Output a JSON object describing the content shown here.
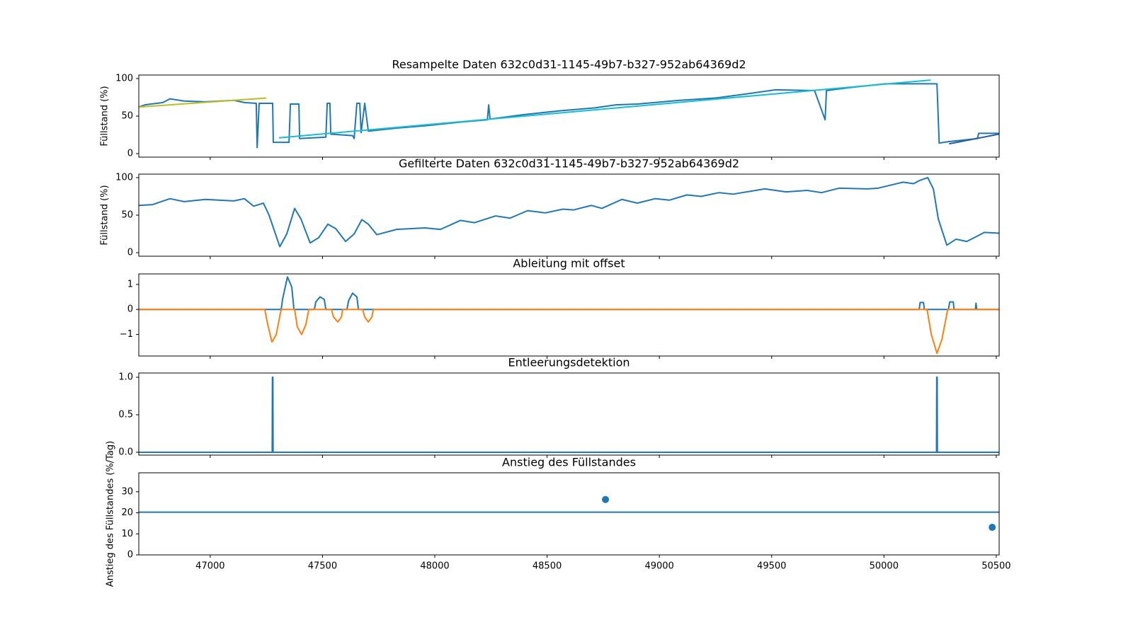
{
  "chart_data": [
    {
      "type": "line",
      "title": "Resampelte Daten 632c0d31-1145-49b7-b327-952ab64369d2",
      "ylabel": "Füllstand (%)",
      "xlim": [
        46682,
        50513
      ],
      "ylim": [
        -4.7,
        104.7
      ],
      "yticks": [
        0,
        50,
        100
      ],
      "series": [
        {
          "color": "#1f77b4",
          "x": [
            46682,
            46710,
            46789,
            46821,
            46884,
            46978,
            47105,
            47152,
            47205,
            47209,
            47218,
            47278,
            47281,
            47351,
            47357,
            47395,
            47398,
            47515,
            47521,
            47533,
            47537,
            47634,
            47641,
            47653,
            47666,
            47672,
            47688,
            47704,
            47830,
            47956,
            48114,
            48234,
            48240,
            48246,
            48398,
            48555,
            48713,
            48807,
            48902,
            49091,
            49249,
            49375,
            49517,
            49691,
            49738,
            49744,
            49848,
            50006,
            50236,
            50246,
            50290,
            50416,
            50422,
            50513
          ],
          "values": [
            62,
            65,
            68,
            73,
            70,
            69,
            71,
            68,
            67,
            8,
            67,
            67,
            15,
            15,
            66,
            66,
            20,
            22,
            67,
            67,
            26,
            24,
            20,
            67,
            67,
            28,
            67,
            30,
            34,
            37,
            42,
            45,
            65,
            46,
            52,
            57,
            61,
            65,
            66,
            71,
            74,
            79,
            85,
            84,
            45,
            84,
            88,
            93,
            93,
            14,
            16,
            20,
            27,
            27
          ]
        },
        {
          "color": "#bcbd22",
          "x": [
            46682,
            47250
          ],
          "values": [
            62,
            74
          ]
        },
        {
          "color": "#17becf",
          "x": [
            47306,
            50208
          ],
          "values": [
            21,
            98
          ]
        },
        {
          "color": "#2a5d9f",
          "x": [
            50290,
            50513
          ],
          "values": [
            13,
            26
          ]
        }
      ]
    },
    {
      "type": "line",
      "title": "Gefilterte Daten 632c0d31-1145-49b7-b327-952ab64369d2",
      "ylabel": "Füllstand (%)",
      "xlim": [
        46682,
        50513
      ],
      "ylim": [
        -4.7,
        104.7
      ],
      "yticks": [
        0,
        50,
        100
      ],
      "series": [
        {
          "color": "#1f77b4",
          "x": [
            46682,
            46742,
            46821,
            46884,
            46978,
            47105,
            47152,
            47193,
            47237,
            47262,
            47310,
            47341,
            47376,
            47404,
            47445,
            47483,
            47524,
            47559,
            47603,
            47641,
            47675,
            47704,
            47742,
            47830,
            47956,
            48025,
            48114,
            48177,
            48271,
            48335,
            48413,
            48492,
            48571,
            48618,
            48697,
            48744,
            48833,
            48902,
            48981,
            49044,
            49123,
            49186,
            49265,
            49328,
            49470,
            49564,
            49659,
            49722,
            49801,
            49927,
            49974,
            50085,
            50132,
            50157,
            50195,
            50220,
            50242,
            50280,
            50321,
            50369,
            50447,
            50513
          ],
          "values": [
            63,
            64,
            72,
            68,
            71,
            69,
            72,
            62,
            66,
            50,
            8,
            25,
            59,
            45,
            13,
            20,
            38,
            32,
            15,
            25,
            44,
            38,
            24,
            31,
            33,
            31,
            43,
            40,
            49,
            46,
            56,
            53,
            58,
            57,
            63,
            59,
            71,
            66,
            72,
            70,
            77,
            75,
            80,
            78,
            85,
            81,
            83,
            80,
            86,
            85,
            86,
            94,
            92,
            96,
            100,
            85,
            45,
            10,
            18,
            15,
            27,
            26
          ]
        }
      ]
    },
    {
      "type": "line",
      "title": "Ableitung mit offset",
      "xlim": [
        46682,
        50513
      ],
      "ylim": [
        -1.86,
        1.42
      ],
      "yticks": [
        {
          "value": -1,
          "label": "−1"
        },
        0,
        1
      ],
      "series": [
        {
          "color": "#1f77b4",
          "x": [
            46682,
            47316,
            47322,
            47344,
            47363,
            47373,
            47464,
            47470,
            47489,
            47508,
            47515,
            47609,
            47616,
            47634,
            47653,
            47660,
            50157,
            50161,
            50176,
            50180,
            50287,
            50293,
            50309,
            50312,
            50407,
            50410,
            50413,
            50513
          ],
          "values": [
            0,
            0,
            0.4,
            1.3,
            0.9,
            0,
            0,
            0.3,
            0.5,
            0.4,
            0,
            0,
            0.35,
            0.65,
            0.5,
            0,
            0,
            0.28,
            0.28,
            0,
            0,
            0.3,
            0.3,
            0,
            0,
            0.25,
            0,
            0
          ]
        },
        {
          "color": "#ff7f0e",
          "x": [
            46682,
            47243,
            47256,
            47275,
            47294,
            47316,
            47376,
            47388,
            47407,
            47426,
            47439,
            47540,
            47549,
            47568,
            47584,
            47590,
            47679,
            47688,
            47704,
            47720,
            47726,
            50192,
            50211,
            50236,
            50258,
            50284,
            50513
          ],
          "values": [
            0,
            0,
            -0.6,
            -1.3,
            -1.0,
            0,
            0,
            -0.7,
            -1.0,
            -0.6,
            0,
            0,
            -0.3,
            -0.5,
            -0.3,
            0,
            0,
            -0.3,
            -0.5,
            -0.3,
            0,
            0,
            -1.0,
            -1.75,
            -1.2,
            0,
            0
          ]
        }
      ]
    },
    {
      "type": "line",
      "title": "Entleerungsdetektion",
      "xlim": [
        46682,
        50513
      ],
      "ylim": [
        -0.038,
        1.057
      ],
      "yticks": [
        {
          "value": 0,
          "label": "0.0"
        },
        0.5,
        {
          "value": 1,
          "label": "1.0"
        }
      ],
      "series": [
        {
          "color": "#1f77b4",
          "x": [
            46682,
            47276,
            47277,
            47279,
            47280,
            50234,
            50235,
            50237,
            50238,
            50513
          ],
          "values": [
            0,
            0,
            1,
            1,
            0,
            0,
            1,
            1,
            0,
            0
          ]
        }
      ]
    },
    {
      "type": "scatter",
      "title": "Anstieg des Füllstandes",
      "ylabel": "Anstieg des Füllstandes (%/Tag)",
      "xlim": [
        46682,
        50513
      ],
      "ylim": [
        0,
        39
      ],
      "yticks": [
        0,
        10,
        20,
        30
      ],
      "xticks": [
        47000,
        47500,
        48000,
        48500,
        49000,
        49500,
        50000,
        50500
      ],
      "hline": 20.3,
      "color": "#1f77b4",
      "x": [
        48760,
        50482
      ],
      "values": [
        26.3,
        13.1
      ]
    }
  ]
}
